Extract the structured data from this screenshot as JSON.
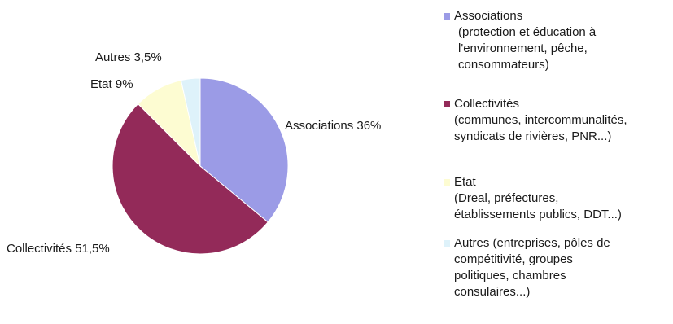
{
  "chart_data": {
    "type": "pie",
    "title": "",
    "start_angle_deg": 0,
    "direction": "clockwise",
    "slices": [
      {
        "category": "Associations",
        "value": 36.0,
        "label": "Associations 36%",
        "color": "#9b9be6"
      },
      {
        "category": "Collectivités",
        "value": 51.5,
        "label": "Collectivités 51,5%",
        "color": "#932a59"
      },
      {
        "category": "Etat",
        "value": 9.0,
        "label": "Etat 9%",
        "color": "#fdfcd2"
      },
      {
        "category": "Autres",
        "value": 3.5,
        "label": "Autres 3,5%",
        "color": "#def2fa"
      }
    ],
    "legend": {
      "placement": "right",
      "entries": [
        {
          "name": "Associations",
          "description": "(protection et éducation à\nl'environnement, pêche,\nconsommateurs)",
          "color": "#9b9be6"
        },
        {
          "name": "Collectivités",
          "description": "(communes, intercommunalités,\nsyndicats de rivières, PNR...)",
          "color": "#932a59"
        },
        {
          "name": "Etat",
          "description": "(Dreal, préfectures,\nétablissements publics, DDT...)",
          "color": "#fdfcd2"
        },
        {
          "name": "Autres (entreprises, pôles de",
          "description": "compétitivité, groupes\npolitiques, chambres\nconsulaires...)",
          "color": "#def2fa"
        }
      ]
    }
  }
}
